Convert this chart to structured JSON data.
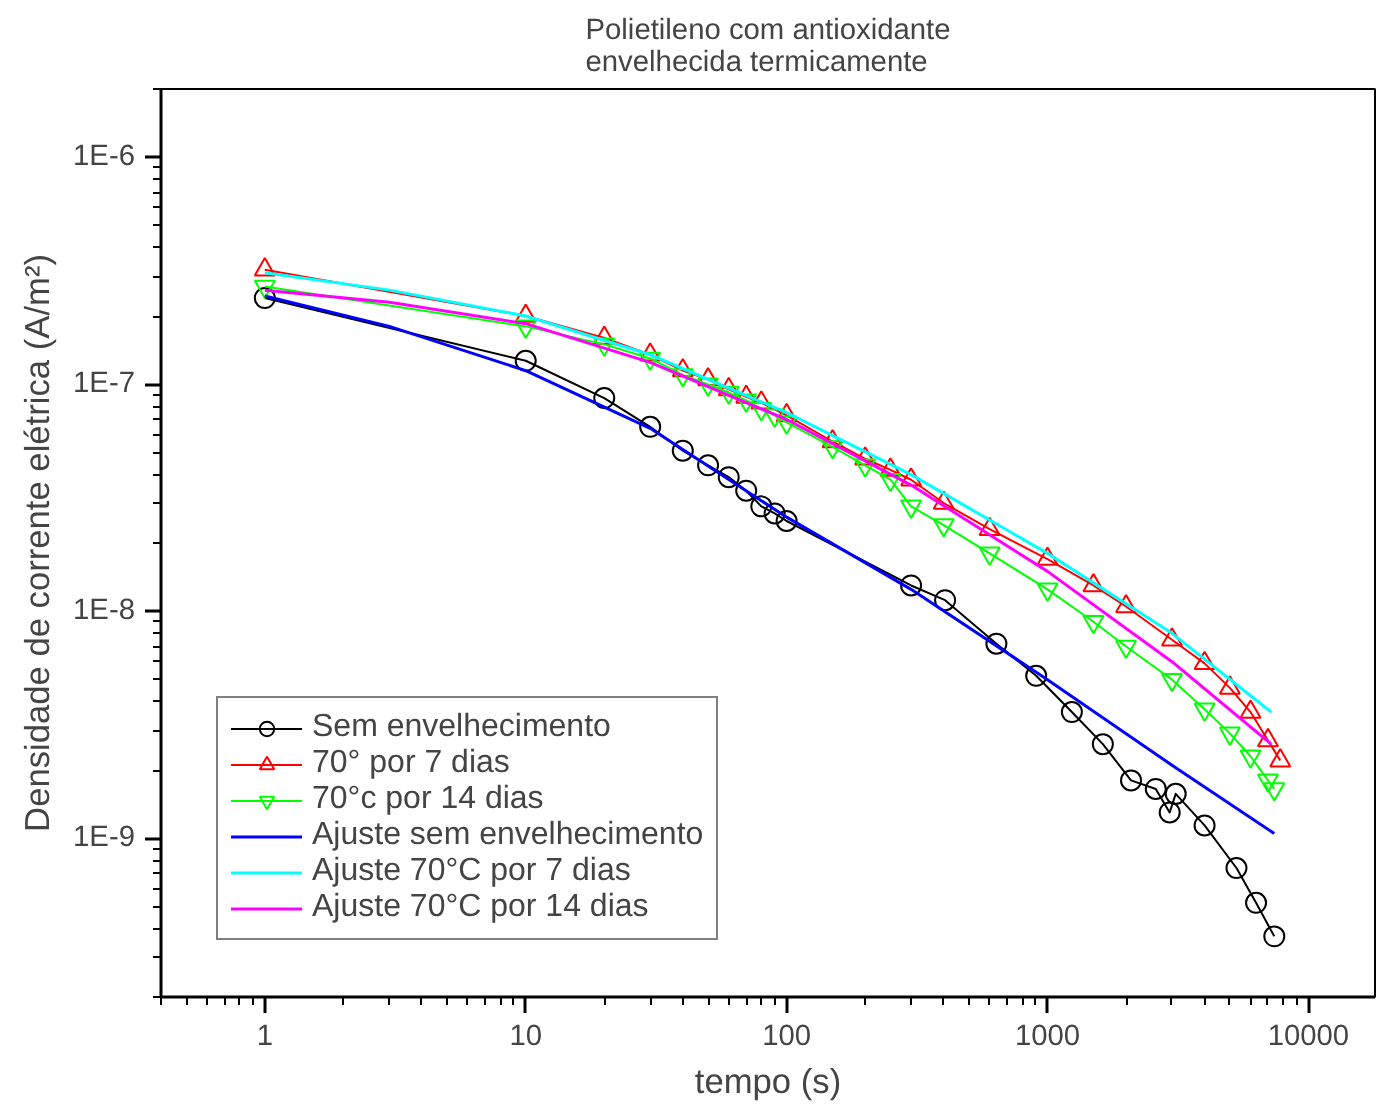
{
  "chart_data": {
    "type": "line",
    "title": "Polietileno com antioxidante\nenvelhecida termicamente",
    "xlabel": "tempo (s)",
    "ylabel": "Densidade de corrente elétrica (A/m²)",
    "log": "xy",
    "grid": false,
    "legend": "bottom left",
    "xlim": [
      0.4,
      18000
    ],
    "ylim": [
      2e-10,
      2e-06
    ],
    "xticks": [
      1,
      10,
      100,
      1000,
      10000
    ],
    "yticks": [
      {
        "value": 1e-09,
        "label": "1E-9"
      },
      {
        "value": 1e-08,
        "label": "1E-8"
      },
      {
        "value": 1e-07,
        "label": "1E-7"
      },
      {
        "value": 1e-06,
        "label": "1E-6"
      }
    ],
    "series": [
      {
        "name": "Sem envelhecimento",
        "color": "#000000",
        "marker": "circle",
        "x": [
          1,
          10,
          20,
          30,
          40,
          50,
          60,
          70,
          80,
          90,
          100,
          300,
          405,
          637,
          905,
          1240,
          1630,
          2090,
          2600,
          2940,
          3100,
          4000,
          5300,
          6300,
          7400
        ],
        "values": [
          2.4e-07,
          1.27e-07,
          8.7e-08,
          6.5e-08,
          5.1e-08,
          4.4e-08,
          3.9e-08,
          3.4e-08,
          2.9e-08,
          2.7e-08,
          2.5e-08,
          1.3e-08,
          1.12e-08,
          7.2e-09,
          5.2e-09,
          3.6e-09,
          2.6e-09,
          1.8e-09,
          1.65e-09,
          1.3e-09,
          1.57e-09,
          1.14e-09,
          7.4e-10,
          5.2e-10,
          3.7e-10
        ]
      },
      {
        "name": "70° por 7 dias",
        "color": "#ff0000",
        "marker": "triangle",
        "x": [
          1,
          10,
          20,
          30,
          40,
          50,
          60,
          70,
          80,
          100,
          150,
          200,
          250,
          300,
          400,
          600,
          1000,
          1500,
          2000,
          3000,
          4000,
          5000,
          6000,
          7000,
          7800
        ],
        "values": [
          3.2e-07,
          2e-07,
          1.6e-07,
          1.35e-07,
          1.15e-07,
          1.05e-07,
          9.5e-08,
          8.8e-08,
          8.3e-08,
          7.3e-08,
          5.6e-08,
          4.7e-08,
          4.2e-08,
          3.8e-08,
          3e-08,
          2.3e-08,
          1.7e-08,
          1.3e-08,
          1.05e-08,
          7.5e-09,
          5.9e-09,
          4.6e-09,
          3.6e-09,
          2.7e-09,
          2.2e-09
        ]
      },
      {
        "name": "70°c por 14 dias",
        "color": "#00ff00",
        "marker": "triangle_down",
        "x": [
          1,
          10,
          20,
          30,
          40,
          50,
          60,
          70,
          80,
          90,
          100,
          150,
          200,
          250,
          300,
          400,
          600,
          1000,
          1500,
          2000,
          3000,
          4000,
          5000,
          6000,
          7000,
          7400
        ],
        "values": [
          2.7e-07,
          1.8e-07,
          1.5e-07,
          1.3e-07,
          1.1e-07,
          1e-07,
          9.2e-08,
          8.5e-08,
          7.8e-08,
          7.3e-08,
          6.8e-08,
          5.3e-08,
          4.4e-08,
          3.8e-08,
          2.9e-08,
          2.4e-08,
          1.8e-08,
          1.25e-08,
          9e-09,
          7e-09,
          5e-09,
          3.7e-09,
          2.9e-09,
          2.3e-09,
          1.8e-09,
          1.65e-09
        ]
      },
      {
        "name": "Ajuste sem envelhecimento",
        "color": "#0000ff",
        "marker": "none",
        "x": [
          1,
          3,
          10,
          30,
          100,
          300,
          1000,
          3000,
          7400
        ],
        "values": [
          2.45e-07,
          1.8e-07,
          1.15e-07,
          6.4e-08,
          2.6e-08,
          1.25e-08,
          5e-09,
          2.1e-09,
          1.05e-09
        ]
      },
      {
        "name": "Ajuste 70°C por 7 dias",
        "color": "#00ffff",
        "marker": "none",
        "x": [
          1,
          3,
          10,
          30,
          100,
          300,
          1000,
          3000,
          7200
        ],
        "values": [
          3.1e-07,
          2.6e-07,
          2e-07,
          1.35e-07,
          7.5e-08,
          4e-08,
          1.8e-08,
          8e-09,
          3.6e-09
        ]
      },
      {
        "name": "Ajuste 70°C por 14 dias",
        "color": "#ff00ff",
        "marker": "none",
        "x": [
          1,
          3,
          10,
          30,
          100,
          300,
          1000,
          3000,
          7200
        ],
        "values": [
          2.6e-07,
          2.3e-07,
          1.85e-07,
          1.25e-07,
          7e-08,
          3.6e-08,
          1.5e-08,
          6e-09,
          2.6e-09
        ]
      }
    ]
  }
}
